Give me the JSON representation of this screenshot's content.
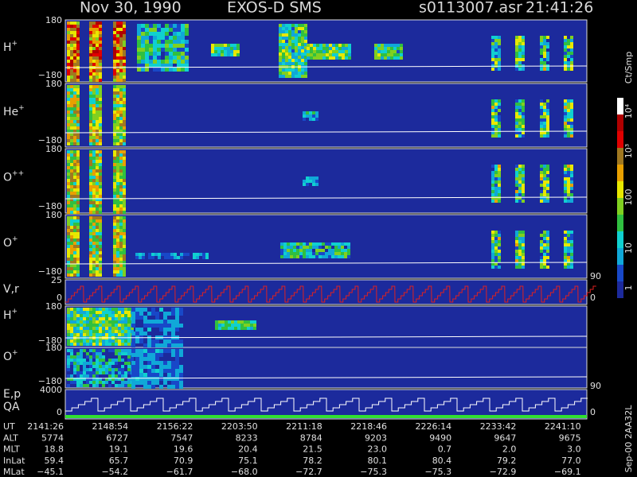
{
  "header": {
    "date": "Nov 30, 1990",
    "instrument": "EXOS-D SMS",
    "file": "s0113007.asr",
    "time": "21:41:26"
  },
  "panels": [
    {
      "label": "H",
      "sup": "+",
      "ticks": [
        "180",
        "−180"
      ]
    },
    {
      "label": "He",
      "sup": "+",
      "ticks": [
        "180",
        "−180"
      ]
    },
    {
      "label": "O",
      "sup": "++",
      "ticks": [
        "180",
        "−180"
      ]
    },
    {
      "label": "O",
      "sup": "+",
      "ticks": [
        "180",
        "−180"
      ]
    },
    {
      "label": "V,r",
      "sup": "",
      "ticks": [
        "25",
        "0"
      ],
      "right_ticks": [
        "90",
        "0"
      ]
    },
    {
      "label": "H",
      "sup": "+",
      "ticks": [
        "180",
        "−180"
      ]
    },
    {
      "label": "O",
      "sup": "+",
      "ticks": [
        "180",
        "−180"
      ]
    },
    {
      "label": "E,p",
      "label2": "QA",
      "sup": "",
      "ticks": [
        "4000",
        "0"
      ],
      "right_ticks": [
        "90",
        "0"
      ]
    }
  ],
  "colorbar": {
    "unit": "Ct/Smp",
    "labels": [
      "1",
      "10",
      "100",
      "10³",
      "10⁴"
    ]
  },
  "footer_note": "Sep-00  2AA32L",
  "table": {
    "rows": [
      {
        "name": "UT",
        "values": [
          "2141:26",
          "2148:54",
          "2156:22",
          "2203:50",
          "2211:18",
          "2218:46",
          "2226:14",
          "2233:42",
          "2241:10"
        ]
      },
      {
        "name": "ALT",
        "values": [
          "5774",
          "6727",
          "7547",
          "8233",
          "8784",
          "9203",
          "9490",
          "9647",
          "9675"
        ]
      },
      {
        "name": "MLT",
        "values": [
          "18.8",
          "19.1",
          "19.6",
          "20.4",
          "21.5",
          "23.0",
          "0.7",
          "2.0",
          "3.0"
        ]
      },
      {
        "name": "InLat",
        "values": [
          "59.4",
          "65.7",
          "70.9",
          "75.1",
          "78.2",
          "80.1",
          "80.4",
          "79.2",
          "77.0"
        ]
      },
      {
        "name": "MLat",
        "values": [
          "−45.1",
          "−54.2",
          "−61.7",
          "−68.0",
          "−72.7",
          "−75.3",
          "−75.3",
          "−72.9",
          "−69.1"
        ]
      }
    ]
  }
}
